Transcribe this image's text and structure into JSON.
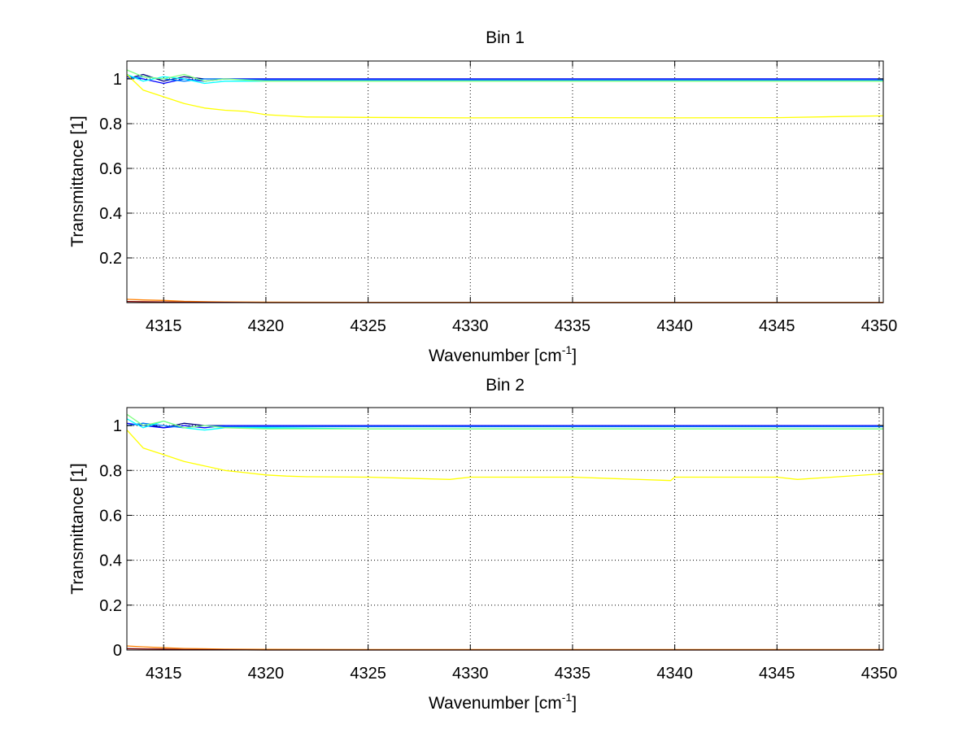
{
  "chart_data": [
    {
      "type": "line",
      "title": "Bin 1",
      "xlabel": "Wavenumber [cm",
      "xlabel_sup": "-1",
      "xlabel_close": "]",
      "ylabel": "Transmittance [1]",
      "xlim": [
        4313.2,
        4350.2
      ],
      "ylim": [
        0,
        1.08
      ],
      "grid": true,
      "xticks": [
        4315,
        4320,
        4325,
        4330,
        4335,
        4340,
        4345,
        4350
      ],
      "xtick_labels": [
        "4315",
        "4320",
        "4325",
        "4330",
        "4335",
        "4340",
        "4345",
        "4350"
      ],
      "yticks": [
        0.2,
        0.4,
        0.6,
        0.8,
        1
      ],
      "ytick_labels": [
        "0.2",
        "0.4",
        "0.6",
        "0.8",
        "1"
      ],
      "series": [
        {
          "name": "navy",
          "color": "#000080",
          "x": [
            4313.2,
            4314,
            4315,
            4316,
            4317,
            4318,
            4320,
            4325,
            4330,
            4335,
            4340,
            4345,
            4350.2
          ],
          "y": [
            1.0,
            1.02,
            0.99,
            1.01,
            1.0,
            1.0,
            1.0,
            1.0,
            1.0,
            1.0,
            1.0,
            1.0,
            1.0
          ]
        },
        {
          "name": "blue",
          "color": "#0000ff",
          "x": [
            4313.2,
            4314,
            4315,
            4316,
            4317,
            4318,
            4320,
            4325,
            4330,
            4335,
            4340,
            4345,
            4350.2
          ],
          "y": [
            1.01,
            1.0,
            0.98,
            1.0,
            0.99,
            1.0,
            1.0,
            1.0,
            1.0,
            1.0,
            1.0,
            1.0,
            1.0
          ]
        },
        {
          "name": "medium-blue",
          "color": "#0080ff",
          "x": [
            4313.2,
            4314,
            4315,
            4316,
            4317,
            4318,
            4320,
            4325,
            4330,
            4335,
            4340,
            4345,
            4350.2
          ],
          "y": [
            1.0,
            1.01,
            1.0,
            0.99,
            1.0,
            1.0,
            0.995,
            0.995,
            0.995,
            0.995,
            0.995,
            0.995,
            0.995
          ]
        },
        {
          "name": "cyan",
          "color": "#00ffff",
          "x": [
            4313.2,
            4314,
            4315,
            4316,
            4317,
            4318,
            4320,
            4325,
            4330,
            4335,
            4340,
            4345,
            4350.2
          ],
          "y": [
            1.02,
            0.99,
            1.01,
            1.0,
            0.98,
            0.99,
            0.99,
            0.99,
            0.99,
            0.99,
            0.99,
            0.99,
            0.99
          ]
        },
        {
          "name": "green",
          "color": "#80ff80",
          "x": [
            4313.2,
            4314,
            4315,
            4316,
            4317,
            4318,
            4320,
            4325,
            4330,
            4335,
            4340,
            4345,
            4350.2
          ],
          "y": [
            1.04,
            1.01,
            1.0,
            1.02,
            0.99,
            1.0,
            0.99,
            0.99,
            0.99,
            0.99,
            0.99,
            0.99,
            0.99
          ]
        },
        {
          "name": "yellow",
          "color": "#ffff00",
          "x": [
            4313.2,
            4314,
            4315,
            4316,
            4317,
            4318,
            4319,
            4320,
            4321,
            4322,
            4325,
            4330,
            4335,
            4340,
            4345,
            4350.2
          ],
          "y": [
            1.02,
            0.95,
            0.92,
            0.89,
            0.87,
            0.86,
            0.855,
            0.84,
            0.835,
            0.83,
            0.828,
            0.826,
            0.827,
            0.826,
            0.827,
            0.835
          ]
        },
        {
          "name": "orange",
          "color": "#ff8000",
          "x": [
            4313.2,
            4314,
            4315,
            4316,
            4318,
            4320,
            4325,
            4330,
            4335,
            4340,
            4345,
            4350.2
          ],
          "y": [
            0.015,
            0.012,
            0.01,
            0.006,
            0.003,
            0.002,
            0.001,
            0.001,
            0.001,
            0.001,
            0.001,
            0.001
          ]
        },
        {
          "name": "dark-red",
          "color": "#800000",
          "x": [
            4313.2,
            4314,
            4315,
            4316,
            4318,
            4320,
            4325,
            4330,
            4335,
            4340,
            4345,
            4350.2
          ],
          "y": [
            0.005,
            0.004,
            0.003,
            0.002,
            0.001,
            0.0,
            0.0,
            0.0,
            0.0,
            0.0,
            0.0,
            0.0
          ]
        }
      ]
    },
    {
      "type": "line",
      "title": "Bin 2",
      "xlabel": "Wavenumber [cm",
      "xlabel_sup": "-1",
      "xlabel_close": "]",
      "ylabel": "Transmittance [1]",
      "xlim": [
        4313.2,
        4350.2
      ],
      "ylim": [
        0,
        1.08
      ],
      "grid": true,
      "xticks": [
        4315,
        4320,
        4325,
        4330,
        4335,
        4340,
        4345,
        4350
      ],
      "xtick_labels": [
        "4315",
        "4320",
        "4325",
        "4330",
        "4335",
        "4340",
        "4345",
        "4350"
      ],
      "yticks": [
        0,
        0.2,
        0.4,
        0.6,
        0.8,
        1
      ],
      "ytick_labels": [
        "0",
        "0.2",
        "0.4",
        "0.6",
        "0.8",
        "1"
      ],
      "series": [
        {
          "name": "navy",
          "color": "#000080",
          "x": [
            4313.2,
            4314,
            4315,
            4316,
            4317,
            4318,
            4320,
            4325,
            4330,
            4335,
            4340,
            4345,
            4350.2
          ],
          "y": [
            1.0,
            1.01,
            0.99,
            1.01,
            1.0,
            1.0,
            1.0,
            1.0,
            1.0,
            1.0,
            1.0,
            1.0,
            1.0
          ]
        },
        {
          "name": "blue",
          "color": "#0000ff",
          "x": [
            4313.2,
            4314,
            4315,
            4316,
            4317,
            4318,
            4320,
            4325,
            4330,
            4335,
            4340,
            4345,
            4350.2
          ],
          "y": [
            1.01,
            1.0,
            0.99,
            1.0,
            0.99,
            1.0,
            1.0,
            1.0,
            1.0,
            1.0,
            1.0,
            1.0,
            1.0
          ]
        },
        {
          "name": "medium-blue",
          "color": "#0080ff",
          "x": [
            4313.2,
            4314,
            4315,
            4316,
            4317,
            4318,
            4320,
            4325,
            4330,
            4335,
            4340,
            4345,
            4350.2
          ],
          "y": [
            1.0,
            1.01,
            1.0,
            0.99,
            1.0,
            0.995,
            0.995,
            0.995,
            0.995,
            0.995,
            0.995,
            0.995,
            0.995
          ]
        },
        {
          "name": "cyan",
          "color": "#00ffff",
          "x": [
            4313.2,
            4314,
            4315,
            4316,
            4317,
            4318,
            4320,
            4325,
            4330,
            4335,
            4340,
            4345,
            4350.2
          ],
          "y": [
            1.03,
            0.99,
            1.02,
            0.99,
            0.98,
            0.99,
            0.99,
            0.985,
            0.985,
            0.985,
            0.985,
            0.985,
            0.985
          ]
        },
        {
          "name": "green",
          "color": "#80ff80",
          "x": [
            4313.2,
            4314,
            4315,
            4316,
            4317,
            4318,
            4320,
            4325,
            4330,
            4335,
            4340,
            4345,
            4350.2
          ],
          "y": [
            1.05,
            1.0,
            1.02,
            0.99,
            1.0,
            0.99,
            0.985,
            0.985,
            0.985,
            0.985,
            0.985,
            0.985,
            0.985
          ]
        },
        {
          "name": "yellow",
          "color": "#ffff00",
          "x": [
            4313.2,
            4314,
            4315,
            4316,
            4317,
            4318,
            4319,
            4320,
            4321,
            4322,
            4325,
            4329,
            4330,
            4335,
            4339.8,
            4340,
            4345,
            4346,
            4350.2
          ],
          "y": [
            0.98,
            0.9,
            0.87,
            0.84,
            0.82,
            0.8,
            0.79,
            0.78,
            0.775,
            0.772,
            0.77,
            0.76,
            0.77,
            0.77,
            0.755,
            0.77,
            0.77,
            0.76,
            0.785
          ]
        },
        {
          "name": "orange",
          "color": "#ff8000",
          "x": [
            4313.2,
            4314,
            4315,
            4316,
            4318,
            4320,
            4325,
            4330,
            4335,
            4340,
            4345,
            4350.2
          ],
          "y": [
            0.018,
            0.014,
            0.01,
            0.007,
            0.004,
            0.003,
            0.002,
            0.002,
            0.002,
            0.002,
            0.002,
            0.002
          ]
        },
        {
          "name": "dark-red",
          "color": "#800000",
          "x": [
            4313.2,
            4314,
            4315,
            4316,
            4318,
            4320,
            4325,
            4330,
            4335,
            4340,
            4345,
            4350.2
          ],
          "y": [
            0.006,
            0.005,
            0.004,
            0.002,
            0.001,
            0.0,
            0.0,
            0.0,
            0.0,
            0.0,
            0.0,
            0.0
          ]
        }
      ]
    }
  ]
}
